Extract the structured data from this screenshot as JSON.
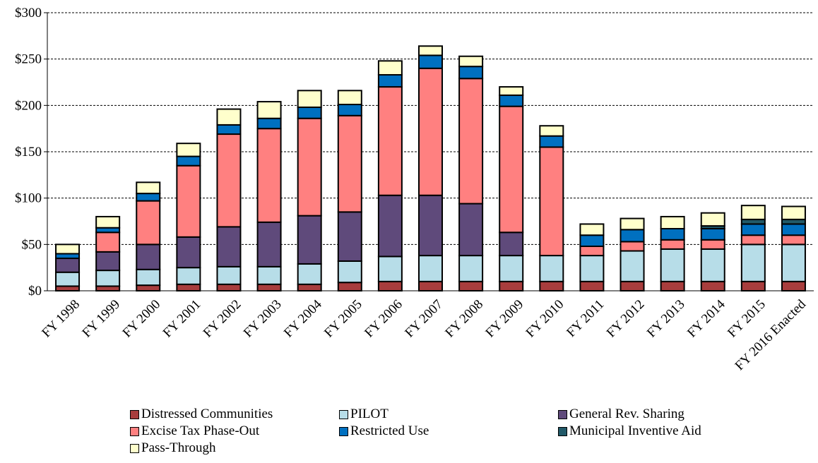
{
  "chart_data": {
    "type": "bar",
    "stacked": true,
    "title": "",
    "xlabel": "",
    "ylabel": "",
    "ylim": [
      0,
      300
    ],
    "yticks": [
      "$0",
      "$50",
      "$100",
      "$150",
      "$200",
      "$250",
      "$300"
    ],
    "grid": true,
    "legend_position": "bottom",
    "categories": [
      "FY 1998",
      "FY 1999",
      "FY 2000",
      "FY 2001",
      "FY 2002",
      "FY 2003",
      "FY 2004",
      "FY 2005",
      "FY 2006",
      "FY 2007",
      "FY 2008",
      "FY 2009",
      "FY 2010",
      "FY 2011",
      "FY 2012",
      "FY 2013",
      "FY 2014",
      "FY 2015",
      "FY 2016 Enacted"
    ],
    "series": [
      {
        "name": "Distressed Communities",
        "color": "#a83d3d",
        "values": [
          5,
          5,
          6,
          7,
          7,
          7,
          7,
          9,
          10,
          10,
          10,
          10,
          10,
          10,
          10,
          10,
          10,
          10,
          10
        ]
      },
      {
        "name": "PILOT",
        "color": "#b7dde8",
        "values": [
          15,
          17,
          17,
          18,
          19,
          19,
          22,
          23,
          27,
          28,
          28,
          28,
          28,
          28,
          33,
          35,
          35,
          40,
          40
        ]
      },
      {
        "name": "General Rev. Sharing",
        "color": "#5f4a7b",
        "values": [
          15,
          20,
          27,
          33,
          43,
          48,
          52,
          53,
          66,
          65,
          56,
          25,
          0,
          0,
          0,
          0,
          0,
          0,
          0
        ]
      },
      {
        "name": "Excise Tax Phase-Out",
        "color": "#ff8080",
        "values": [
          0,
          21,
          47,
          77,
          100,
          101,
          105,
          104,
          117,
          137,
          135,
          136,
          117,
          10,
          10,
          10,
          10,
          10,
          10
        ]
      },
      {
        "name": "Restricted Use",
        "color": "#0070c0",
        "values": [
          5,
          5,
          8,
          10,
          10,
          11,
          12,
          12,
          13,
          14,
          13,
          12,
          12,
          12,
          13,
          12,
          12,
          12,
          12
        ]
      },
      {
        "name": "Municipal Inventive Aid",
        "color": "#215968",
        "values": [
          0,
          0,
          0,
          0,
          0,
          0,
          0,
          0,
          0,
          0,
          0,
          0,
          0,
          0,
          0,
          0,
          3,
          5,
          5
        ]
      },
      {
        "name": "Pass-Through",
        "color": "#ffffcc",
        "values": [
          10,
          12,
          12,
          14,
          17,
          18,
          18,
          15,
          15,
          10,
          11,
          9,
          11,
          12,
          12,
          13,
          14,
          15,
          14
        ]
      }
    ]
  }
}
